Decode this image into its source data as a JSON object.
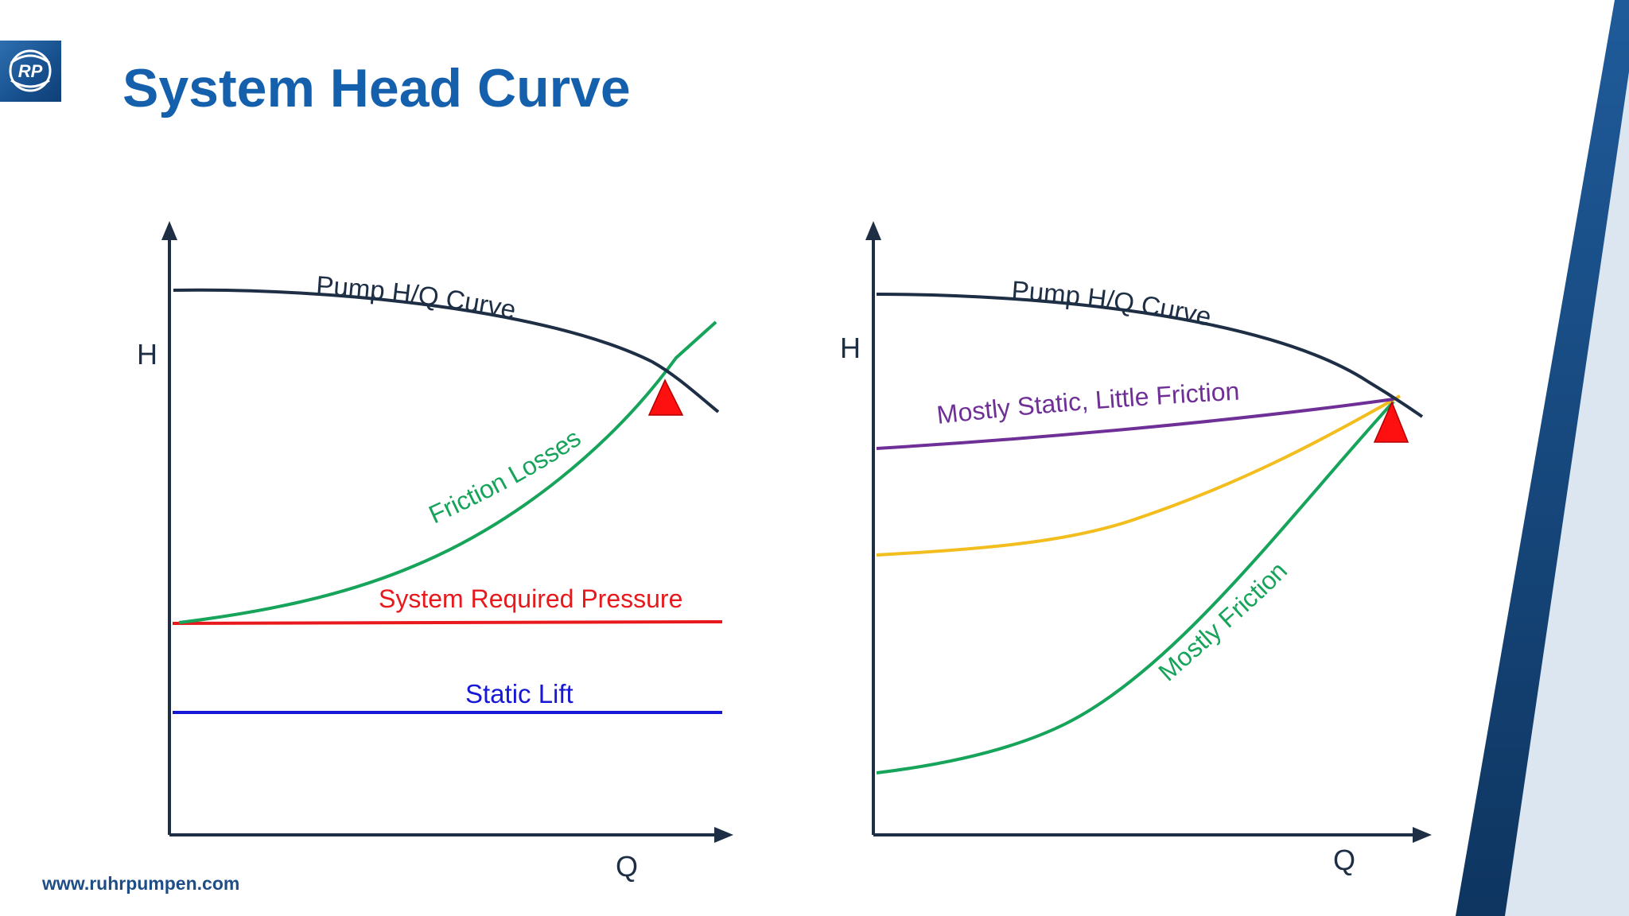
{
  "slide": {
    "title": "System Head Curve",
    "footer": "www.ruhrpumpen.com",
    "logo_text": "RP"
  },
  "left_diagram": {
    "y_axis_label": "H",
    "x_axis_label": "Q",
    "pump_curve_label": "Pump H/Q Curve",
    "friction_label": "Friction Losses",
    "system_pressure_label": "System Required Pressure",
    "static_lift_label": "Static Lift"
  },
  "right_diagram": {
    "y_axis_label": "H",
    "x_axis_label": "Q",
    "pump_curve_label": "Pump H/Q Curve",
    "mostly_static_label": "Mostly Static, Little Friction",
    "mostly_friction_label": "Mostly Friction"
  },
  "colors": {
    "title": "#1560ac",
    "axis": "#1d2e45",
    "pump_curve": "#1d2e45",
    "friction": "#16a35a",
    "system_pressure": "#e8191c",
    "static_lift": "#1717d6",
    "mostly_static": "#6e2f96",
    "intermediate": "#f2bd1d",
    "operating_point": "#ff1010"
  }
}
